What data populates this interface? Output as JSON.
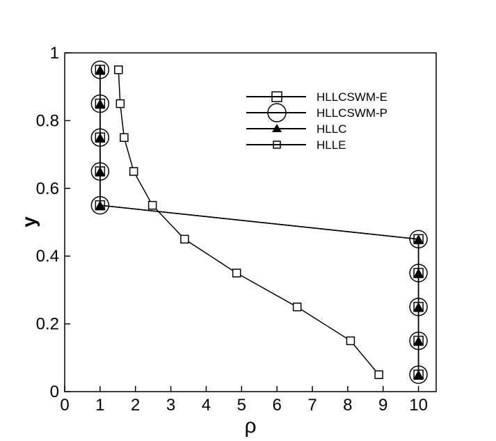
{
  "chart_data": {
    "type": "line",
    "title": "",
    "xlabel": "ρ",
    "ylabel": "y",
    "xlim": [
      0,
      10.5
    ],
    "ylim": [
      0,
      1
    ],
    "xticks": [
      0,
      1,
      2,
      3,
      4,
      5,
      6,
      7,
      8,
      9,
      10
    ],
    "yticks": [
      0,
      0.2,
      0.4,
      0.6,
      0.8,
      1
    ],
    "xtick_labels": [
      "0",
      "1",
      "2",
      "3",
      "4",
      "5",
      "6",
      "7",
      "8",
      "9",
      "10"
    ],
    "ytick_labels": [
      "0",
      "0.2",
      "0.4",
      "0.6",
      "0.8",
      "1"
    ],
    "grid": false,
    "legend_position": "top-right",
    "series": [
      {
        "name": "HLLCSWM-E",
        "marker": "square-large",
        "x": [
          1,
          1,
          1,
          1,
          1,
          10,
          10,
          10,
          10,
          10
        ],
        "y": [
          0.95,
          0.85,
          0.75,
          0.65,
          0.55,
          0.45,
          0.35,
          0.25,
          0.15,
          0.05
        ]
      },
      {
        "name": "HLLCSWM-P",
        "marker": "circle",
        "x": [
          1,
          1,
          1,
          1,
          1,
          10,
          10,
          10,
          10,
          10
        ],
        "y": [
          0.95,
          0.85,
          0.75,
          0.65,
          0.55,
          0.45,
          0.35,
          0.25,
          0.15,
          0.05
        ]
      },
      {
        "name": "HLLC",
        "marker": "triangle",
        "x": [
          1,
          1,
          1,
          1,
          1,
          10,
          10,
          10,
          10,
          10
        ],
        "y": [
          0.95,
          0.85,
          0.75,
          0.65,
          0.55,
          0.45,
          0.35,
          0.25,
          0.15,
          0.05
        ]
      },
      {
        "name": "HLLE",
        "marker": "square-small",
        "x": [
          1.52,
          1.57,
          1.68,
          1.95,
          2.48,
          3.39,
          4.86,
          6.57,
          8.08,
          8.88
        ],
        "y": [
          0.95,
          0.85,
          0.75,
          0.65,
          0.55,
          0.45,
          0.35,
          0.25,
          0.15,
          0.05
        ]
      }
    ]
  }
}
